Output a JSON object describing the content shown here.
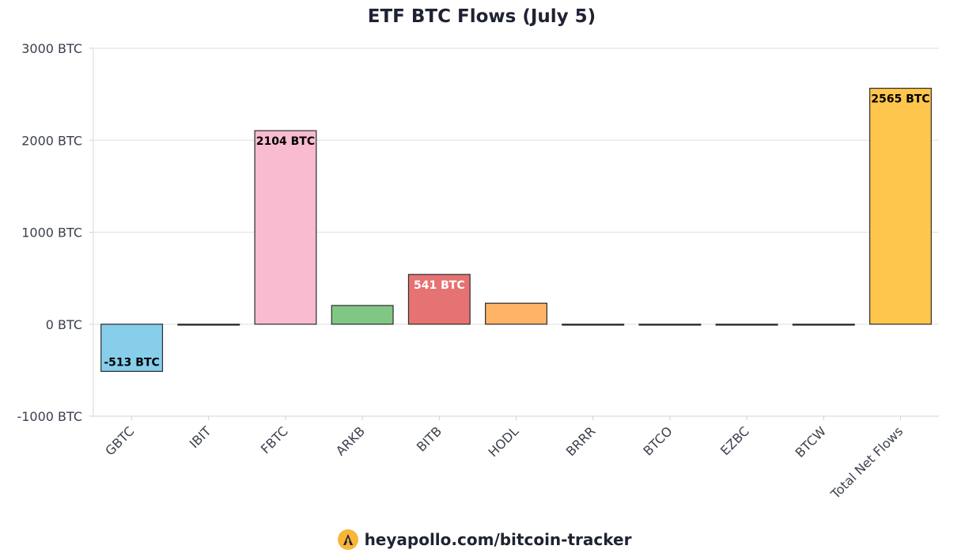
{
  "chart_data": {
    "type": "bar",
    "title": "ETF BTC Flows (July 5)",
    "xlabel": "",
    "ylabel": "",
    "unit": "BTC",
    "ylim": [
      -1000,
      3000
    ],
    "yticks": [
      -1000,
      0,
      1000,
      2000,
      3000
    ],
    "ytick_labels": [
      "-1000 BTC",
      "0 BTC",
      "1000 BTC",
      "2000 BTC",
      "3000 BTC"
    ],
    "grid": true,
    "categories": [
      "GBTC",
      "IBIT",
      "FBTC",
      "ARKB",
      "BITB",
      "HODL",
      "BRRR",
      "BTCO",
      "EZBC",
      "BTCW",
      "Total Net Flows"
    ],
    "values": [
      -513,
      0,
      2104,
      203,
      541,
      228,
      0,
      0,
      0,
      0,
      2565
    ],
    "data_labels": [
      "-513 BTC",
      "",
      "2104 BTC",
      "",
      "541 BTC",
      "",
      "",
      "",
      "",
      "",
      "2565 BTC"
    ],
    "colors": [
      "#87ceeb",
      "#87ceeb",
      "#f8bbd0",
      "#81c784",
      "#e57373",
      "#ffb366",
      "#ffb366",
      "#ffb366",
      "#ffb366",
      "#ffb366",
      "#ffc64d"
    ],
    "label_colors": [
      "#000000",
      "#000000",
      "#000000",
      "#000000",
      "#ffffff",
      "#000000",
      "#000000",
      "#000000",
      "#000000",
      "#000000",
      "#000000"
    ]
  },
  "footer": {
    "text": "heyapollo.com/bitcoin-tracker",
    "logo_icon": "apollo-logo-icon"
  }
}
